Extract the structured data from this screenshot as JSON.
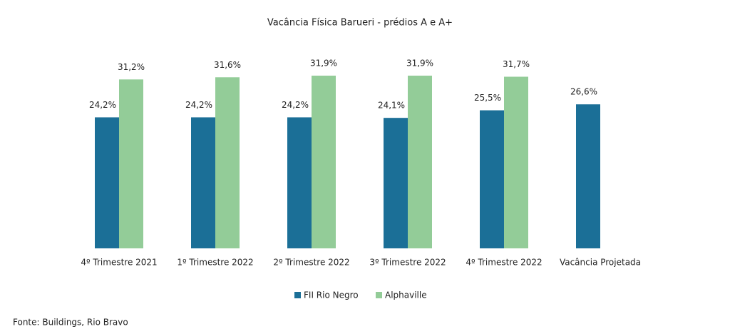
{
  "chart_data": {
    "type": "bar",
    "title": "Vacância Física Barueri - prédios A e A+",
    "categories": [
      "4º Trimestre 2021",
      "1º Trimestre 2022",
      "2º Trimestre 2022",
      "3º Trimestre 2022",
      "4º Trimestre 2022",
      "Vacância Projetada"
    ],
    "series": [
      {
        "name": "FII Rio Negro",
        "color": "#1b6f97",
        "values": [
          24.2,
          24.2,
          24.2,
          24.1,
          25.5,
          26.6
        ],
        "value_labels": [
          "24,2%",
          "24,2%",
          "24,2%",
          "24,1%",
          "25,5%",
          "26,6%"
        ]
      },
      {
        "name": "Alphaville",
        "color": "#93cc98",
        "values": [
          31.2,
          31.6,
          31.9,
          31.9,
          31.7,
          null
        ],
        "value_labels": [
          "31,2%",
          "31,6%",
          "31,9%",
          "31,9%",
          "31,7%",
          null
        ]
      }
    ],
    "source": "Fonte: Buildings, Rio Bravo"
  }
}
